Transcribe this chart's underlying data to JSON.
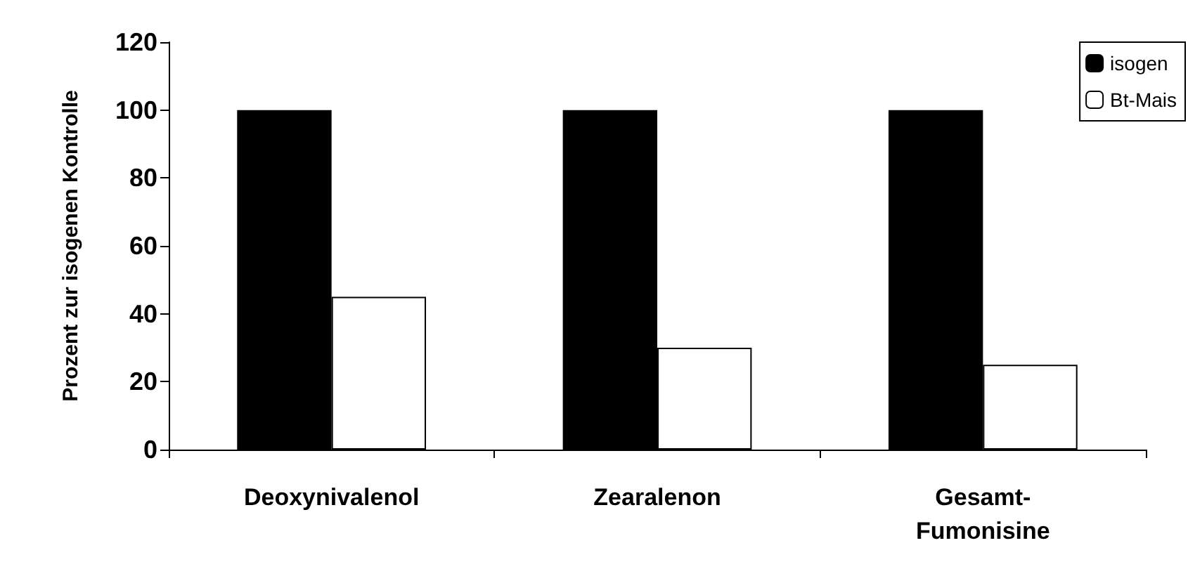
{
  "chart_data": {
    "type": "bar",
    "ylabel": "Prozent zur isogenen Kontrolle",
    "categories": [
      "Deoxynivalenol",
      "Zearalenon",
      "Gesamt-\nFumonisine"
    ],
    "series": [
      {
        "name": "isogen",
        "color": "#000000",
        "values": [
          100,
          100,
          100
        ]
      },
      {
        "name": "Bt-Mais",
        "color": "#ffffff",
        "values": [
          45,
          30,
          25
        ]
      }
    ],
    "ylim": [
      0,
      120
    ],
    "yticks": [
      0,
      20,
      40,
      60,
      80,
      100,
      120
    ],
    "grid": false,
    "legend": "top right"
  }
}
